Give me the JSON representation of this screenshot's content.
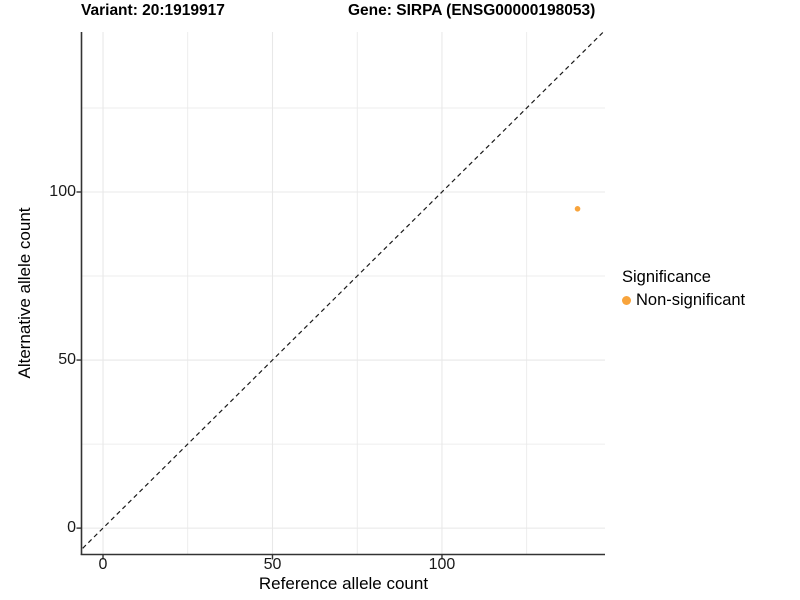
{
  "header": {
    "variant_title": "Variant: 20:1919917",
    "gene_title": "Gene: SIRPA (ENSG00000198053)"
  },
  "legend": {
    "title": "Significance",
    "items": [
      {
        "label": "Non-significant",
        "color": "#F8A43C"
      }
    ]
  },
  "chart_data": {
    "type": "scatter",
    "title": "Variant: 20:1919917 / Gene: SIRPA (ENSG00000198053)",
    "xlabel": "Reference allele count",
    "ylabel": "Alternative allele count",
    "xlim": [
      -6.2,
      148.1
    ],
    "ylim": [
      -7.7,
      147.6
    ],
    "x_ticks": [
      0,
      50,
      100
    ],
    "y_ticks": [
      0,
      50,
      100
    ],
    "grid": true,
    "grid_step": 25,
    "grid_color": "#e8e8e8",
    "axis_color": "#333333",
    "tick_color": "#333333",
    "identity_line": {
      "slope": 1,
      "intercept": 0,
      "style": "dashed",
      "color": "#1a1a1a"
    },
    "series": [
      {
        "name": "Non-significant",
        "color": "#F8A43C",
        "point_radius": 2.8,
        "points": [
          {
            "x": 140,
            "y": 95
          }
        ]
      }
    ],
    "legend_position": "right",
    "legend_title": "Significance"
  }
}
